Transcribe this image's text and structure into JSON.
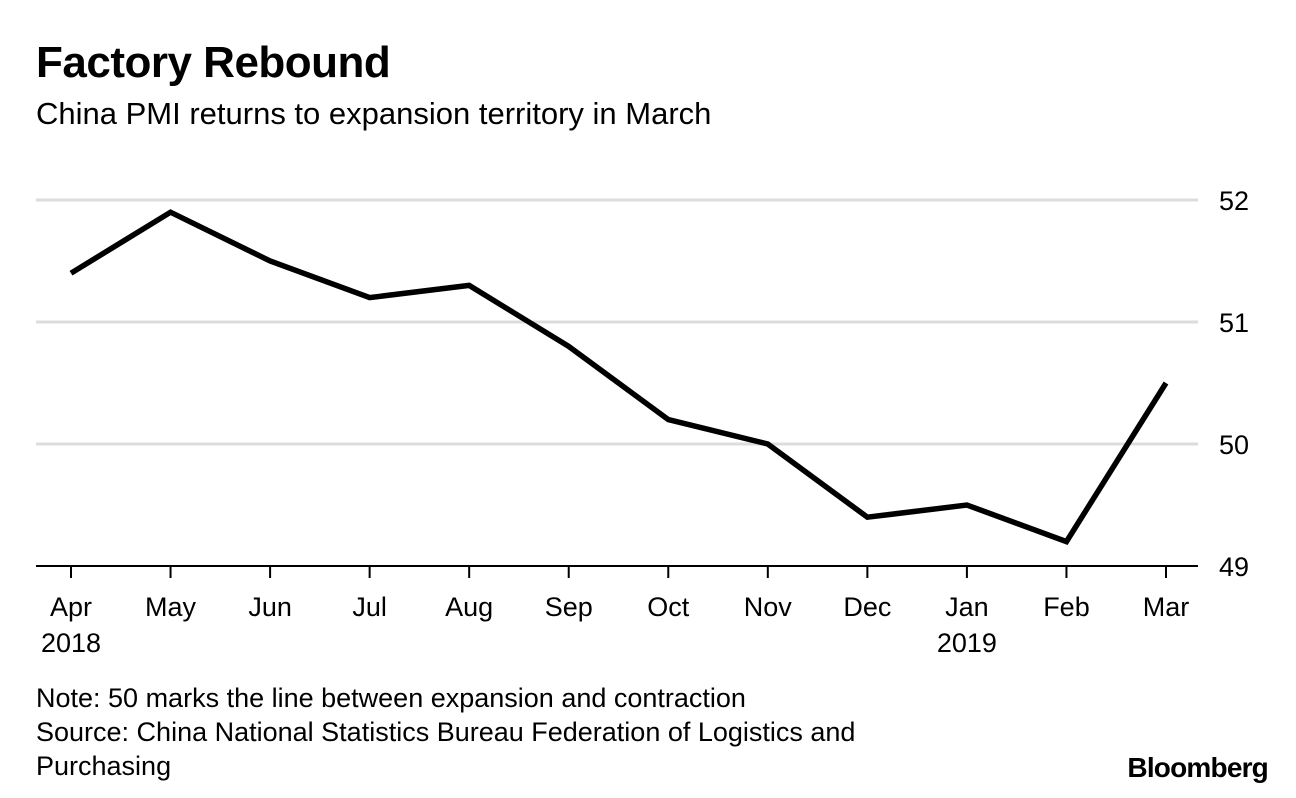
{
  "header": {
    "title": "Factory Rebound",
    "subtitle": "China PMI returns to expansion territory in March"
  },
  "footer": {
    "note": "Note: 50 marks the line between expansion and contraction",
    "source": "Source: China National Statistics Bureau Federation of Logistics and Purchasing",
    "brand": "Bloomberg"
  },
  "colors": {
    "line": "#000000",
    "grid": "#dcdcdc",
    "axis": "#000000",
    "text": "#000000"
  },
  "chart_data": {
    "type": "line",
    "title": "Factory Rebound",
    "subtitle": "China PMI returns to expansion territory in March",
    "xlabel": "",
    "ylabel": "",
    "categories": [
      "Apr",
      "May",
      "Jun",
      "Jul",
      "Aug",
      "Sep",
      "Oct",
      "Nov",
      "Dec",
      "Jan",
      "Feb",
      "Mar"
    ],
    "year_labels": [
      {
        "index": 0,
        "label": "2018"
      },
      {
        "index": 9,
        "label": "2019"
      }
    ],
    "series": [
      {
        "name": "China PMI",
        "values": [
          51.4,
          51.9,
          51.5,
          51.2,
          51.3,
          50.8,
          50.2,
          50.0,
          49.4,
          49.5,
          49.2,
          50.5
        ]
      }
    ],
    "ylim": [
      49,
      52
    ],
    "yticks": [
      49,
      50,
      51,
      52
    ],
    "y_axis_side": "right",
    "grid": true,
    "legend": "none"
  }
}
